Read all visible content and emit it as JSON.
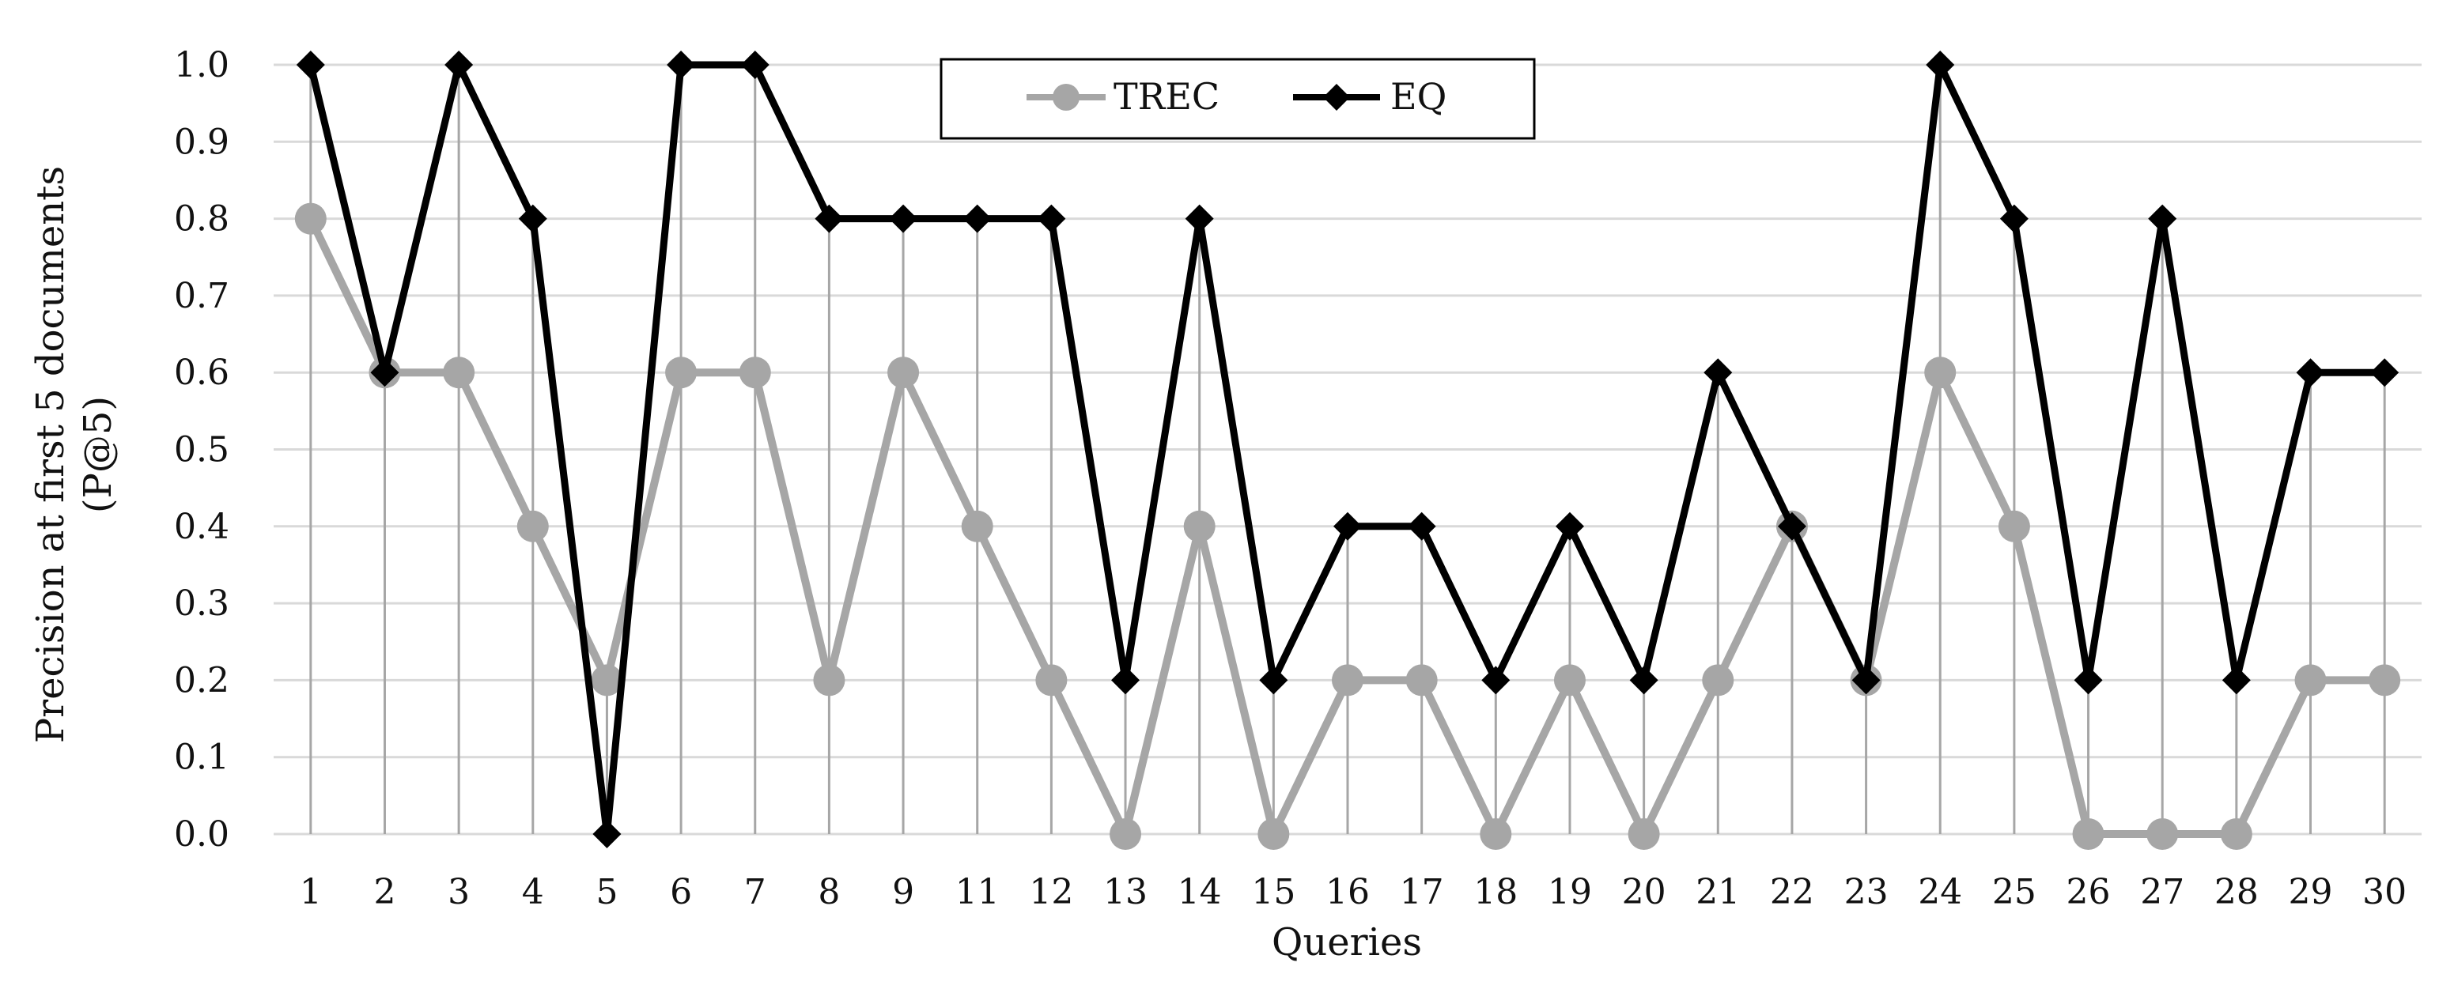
{
  "chart_data": {
    "type": "line",
    "title": "",
    "xlabel": "Queries",
    "ylabel_line1": "Precision at first 5 documents",
    "ylabel_line2": "(P@5)",
    "ylim": [
      0.0,
      1.0
    ],
    "y_ticks": [
      "0.0",
      "0.1",
      "0.2",
      "0.3",
      "0.4",
      "0.5",
      "0.6",
      "0.7",
      "0.8",
      "0.9",
      "1.0"
    ],
    "grid": true,
    "legend_position": "top-center",
    "categories": [
      "1",
      "2",
      "3",
      "4",
      "5",
      "6",
      "7",
      "8",
      "9",
      "11",
      "12",
      "13",
      "14",
      "15",
      "16",
      "17",
      "18",
      "19",
      "20",
      "21",
      "22",
      "23",
      "24",
      "25",
      "26",
      "27",
      "28",
      "29",
      "30"
    ],
    "series": [
      {
        "name": "TREC",
        "marker": "circle",
        "color": "#a6a6a6",
        "values": [
          0.8,
          0.6,
          0.6,
          0.4,
          0.2,
          0.6,
          0.6,
          0.2,
          0.6,
          0.4,
          0.2,
          0.0,
          0.4,
          0.0,
          0.2,
          0.2,
          0.0,
          0.2,
          0.0,
          0.2,
          0.4,
          0.2,
          0.6,
          0.4,
          0.0,
          0.0,
          0.0,
          0.2,
          0.2
        ]
      },
      {
        "name": "EQ",
        "marker": "diamond",
        "color": "#000000",
        "values": [
          1.0,
          0.6,
          1.0,
          0.8,
          0.0,
          1.0,
          1.0,
          0.8,
          0.8,
          0.8,
          0.8,
          0.2,
          0.8,
          0.2,
          0.4,
          0.4,
          0.2,
          0.4,
          0.2,
          0.6,
          0.4,
          0.2,
          1.0,
          0.8,
          0.2,
          0.8,
          0.2,
          0.6,
          0.6
        ]
      }
    ],
    "colors": {
      "gridline": "#d9d9d9",
      "drop_line": "#a6a6a6",
      "legend_border": "#000000"
    }
  }
}
